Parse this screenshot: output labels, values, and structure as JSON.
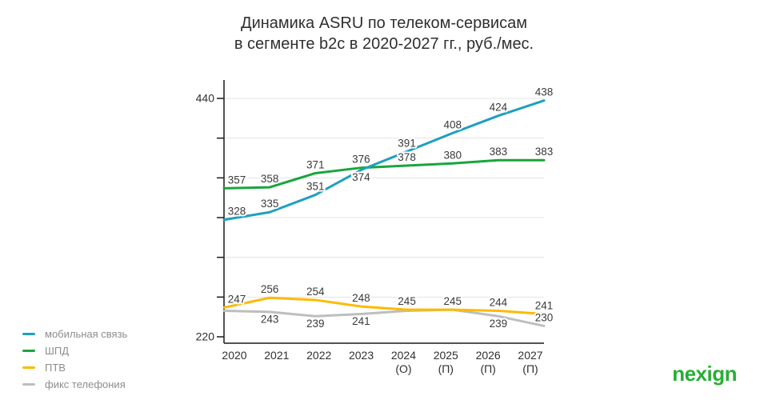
{
  "title": {
    "line1": "Динамика ASRU по телеком-сервисам",
    "line2": "в сегменте b2c в 2020-2027 гг., руб./мес."
  },
  "logo": "nexign",
  "logo_color": "#27AE35",
  "chart_data": {
    "type": "line",
    "title": "Динамика ASRU по телеком-сервисам в сегменте b2c в 2020-2027 гг., руб./мес.",
    "categories": [
      "2020",
      "2021",
      "2022",
      "2023",
      "2024",
      "2025",
      "2026",
      "2027"
    ],
    "category_notes": [
      "",
      "",
      "",
      "",
      "(О)",
      "(П)",
      "(П)",
      "(П)"
    ],
    "ylim": [
      220,
      440
    ],
    "y_tick_labels": [
      "440",
      "220"
    ],
    "grid": true,
    "legend_position": "bottom-left",
    "series": [
      {
        "name": "мобильная связь",
        "color": "#1EA0BE",
        "values": [
          328,
          335,
          351,
          374,
          391,
          408,
          424,
          438
        ],
        "labels": [
          "328",
          "335",
          "351",
          "374",
          "391",
          "408",
          "424",
          "438"
        ]
      },
      {
        "name": "ШПД",
        "color": "#19A53C",
        "values": [
          357,
          358,
          371,
          376,
          378,
          380,
          383,
          383
        ],
        "labels": [
          "357",
          "358",
          "371",
          "376",
          "378",
          "380",
          "383",
          "383"
        ]
      },
      {
        "name": "ПТВ",
        "color": "#FCBA00",
        "values": [
          247,
          256,
          254,
          248,
          245,
          245,
          244,
          241
        ],
        "labels": [
          "247",
          "256",
          "254",
          "248",
          "245",
          "245",
          "244",
          "241"
        ]
      },
      {
        "name": "фикс телефония",
        "color": "#BEBEBE",
        "values": [
          244,
          243,
          239,
          241,
          244,
          245,
          239,
          230
        ],
        "labels": [
          null,
          "243",
          "239",
          "241",
          null,
          null,
          "239",
          "230"
        ]
      }
    ]
  }
}
